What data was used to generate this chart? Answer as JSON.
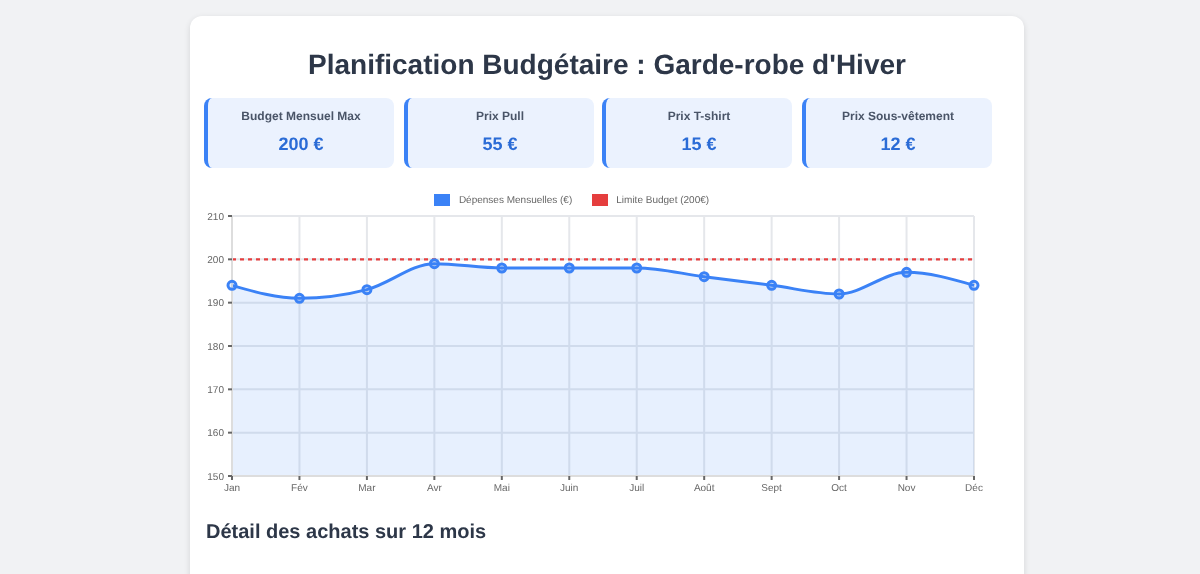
{
  "chart_data": {
    "type": "area",
    "title": "Planification Budgétaire : Garde-robe d'Hiver",
    "categories": [
      "Jan",
      "Fév",
      "Mar",
      "Avr",
      "Mai",
      "Juin",
      "Juil",
      "Août",
      "Sept",
      "Oct",
      "Nov",
      "Déc"
    ],
    "series": [
      {
        "name": "Dépenses Mensuelles (€)",
        "color": "#3b82f6",
        "marker": "circle",
        "values": [
          194,
          191,
          193,
          199,
          198,
          198,
          198,
          196,
          194,
          192,
          197,
          194
        ]
      },
      {
        "name": "Limite Budget (200€)",
        "type": "line",
        "color": "#e53e3e",
        "line_style": "dotted",
        "marker": "none",
        "values": [
          200,
          200,
          200,
          200,
          200,
          200,
          200,
          200,
          200,
          200,
          200,
          200
        ]
      }
    ],
    "ylim": [
      150,
      210
    ],
    "yticks": [
      150,
      160,
      170,
      180,
      190,
      200,
      210
    ],
    "grid": true,
    "legend": "top",
    "annotations": [
      "Budget Mensuel Max",
      "200 €",
      "Prix Pull",
      "55 €",
      "Prix T-shirt",
      "15 €",
      "Prix Sous-vêtement",
      "12 €",
      "Détail des achats sur 12 mois"
    ]
  }
}
